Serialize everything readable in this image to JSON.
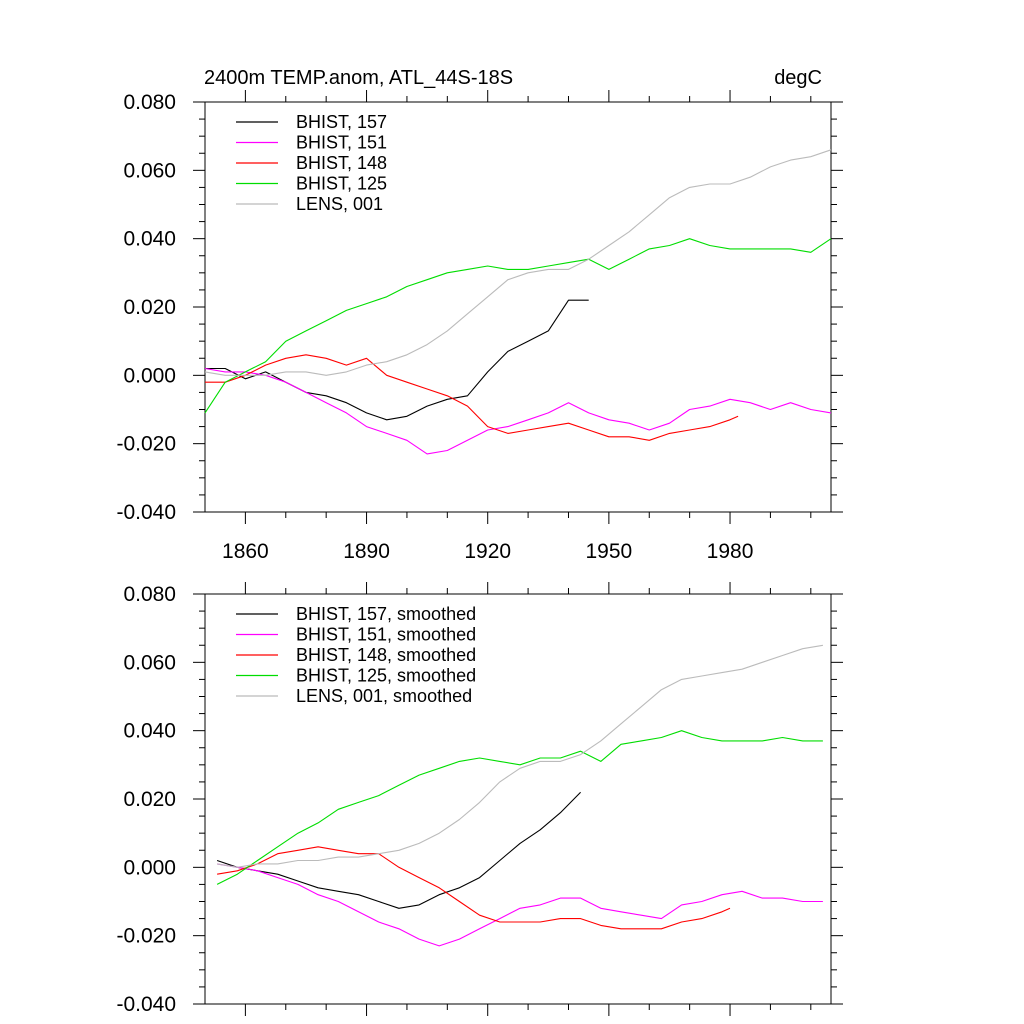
{
  "chart_data": [
    {
      "type": "line",
      "title": "2400m TEMP.anom, ATL_44S-18S",
      "units": "degC",
      "xlim": [
        1850,
        2005
      ],
      "ylim": [
        -0.04,
        0.08
      ],
      "xticks": [
        1860,
        1890,
        1920,
        1950,
        1980
      ],
      "yticks": [
        -0.04,
        -0.02,
        0.0,
        0.02,
        0.04,
        0.06,
        0.08
      ],
      "xtick_labels": [
        "1860",
        "1890",
        "1920",
        "1950",
        "1980"
      ],
      "ytick_labels": [
        "-0.040",
        "-0.020",
        "0.000",
        "0.020",
        "0.040",
        "0.060",
        "0.080"
      ],
      "legend_position": "top-left",
      "series": [
        {
          "name": "BHIST, 157",
          "color": "#000000",
          "x": [
            1850,
            1855,
            1860,
            1865,
            1870,
            1875,
            1880,
            1885,
            1890,
            1895,
            1900,
            1905,
            1910,
            1915,
            1920,
            1925,
            1930,
            1935,
            1940,
            1945
          ],
          "y": [
            0.002,
            0.002,
            -0.001,
            0.001,
            -0.002,
            -0.005,
            -0.006,
            -0.008,
            -0.011,
            -0.013,
            -0.012,
            -0.009,
            -0.007,
            -0.006,
            0.001,
            0.007,
            0.01,
            0.013,
            0.022,
            0.022
          ]
        },
        {
          "name": "BHIST, 151",
          "color": "#ff00ff",
          "x": [
            1850,
            1855,
            1860,
            1865,
            1870,
            1875,
            1880,
            1885,
            1890,
            1895,
            1900,
            1905,
            1910,
            1915,
            1920,
            1925,
            1930,
            1935,
            1940,
            1945,
            1950,
            1955,
            1960,
            1965,
            1970,
            1975,
            1980,
            1985,
            1990,
            1995,
            2000,
            2005
          ],
          "y": [
            0.002,
            0.001,
            0.001,
            0.0,
            -0.002,
            -0.005,
            -0.008,
            -0.011,
            -0.015,
            -0.017,
            -0.019,
            -0.023,
            -0.022,
            -0.019,
            -0.016,
            -0.015,
            -0.013,
            -0.011,
            -0.008,
            -0.011,
            -0.013,
            -0.014,
            -0.016,
            -0.014,
            -0.01,
            -0.009,
            -0.007,
            -0.008,
            -0.01,
            -0.008,
            -0.01,
            -0.011
          ]
        },
        {
          "name": "BHIST, 148",
          "color": "#ff0000",
          "x": [
            1850,
            1855,
            1860,
            1865,
            1870,
            1875,
            1880,
            1885,
            1890,
            1895,
            1900,
            1905,
            1910,
            1915,
            1920,
            1925,
            1930,
            1935,
            1940,
            1945,
            1950,
            1955,
            1960,
            1965,
            1970,
            1975,
            1980,
            1982
          ],
          "y": [
            -0.002,
            -0.002,
            0.0,
            0.003,
            0.005,
            0.006,
            0.005,
            0.003,
            0.005,
            0.0,
            -0.002,
            -0.004,
            -0.006,
            -0.009,
            -0.015,
            -0.017,
            -0.016,
            -0.015,
            -0.014,
            -0.016,
            -0.018,
            -0.018,
            -0.019,
            -0.017,
            -0.016,
            -0.015,
            -0.013,
            -0.012
          ]
        },
        {
          "name": "BHIST, 125",
          "color": "#00dd00",
          "x": [
            1850,
            1855,
            1860,
            1865,
            1870,
            1875,
            1880,
            1885,
            1890,
            1895,
            1900,
            1905,
            1910,
            1915,
            1920,
            1925,
            1930,
            1935,
            1940,
            1945,
            1950,
            1955,
            1960,
            1965,
            1970,
            1975,
            1980,
            1985,
            1990,
            1995,
            2000,
            2005
          ],
          "y": [
            -0.011,
            -0.002,
            0.001,
            0.004,
            0.01,
            0.013,
            0.016,
            0.019,
            0.021,
            0.023,
            0.026,
            0.028,
            0.03,
            0.031,
            0.032,
            0.031,
            0.031,
            0.032,
            0.033,
            0.034,
            0.031,
            0.034,
            0.037,
            0.038,
            0.04,
            0.038,
            0.037,
            0.037,
            0.037,
            0.037,
            0.036,
            0.04
          ]
        },
        {
          "name": "LENS, 001",
          "color": "#bbbbbb",
          "x": [
            1850,
            1855,
            1860,
            1865,
            1870,
            1875,
            1880,
            1885,
            1890,
            1895,
            1900,
            1905,
            1910,
            1915,
            1920,
            1925,
            1930,
            1935,
            1940,
            1945,
            1950,
            1955,
            1960,
            1965,
            1970,
            1975,
            1980,
            1985,
            1990,
            1995,
            2000,
            2005
          ],
          "y": [
            0.001,
            0.0,
            0.0,
            0.0,
            0.001,
            0.001,
            0.0,
            0.001,
            0.003,
            0.004,
            0.006,
            0.009,
            0.013,
            0.018,
            0.023,
            0.028,
            0.03,
            0.031,
            0.031,
            0.034,
            0.038,
            0.042,
            0.047,
            0.052,
            0.055,
            0.056,
            0.056,
            0.058,
            0.061,
            0.063,
            0.064,
            0.066
          ]
        }
      ]
    },
    {
      "type": "line",
      "xlim": [
        1850,
        2005
      ],
      "ylim": [
        -0.04,
        0.08
      ],
      "yticks": [
        -0.04,
        -0.02,
        0.0,
        0.02,
        0.04,
        0.06,
        0.08
      ],
      "ytick_labels": [
        "-0.040",
        "-0.020",
        "0.000",
        "0.020",
        "0.040",
        "0.060",
        "0.080"
      ],
      "legend_position": "top-left",
      "series": [
        {
          "name": "BHIST, 157, smoothed",
          "color": "#000000",
          "x": [
            1853,
            1858,
            1863,
            1868,
            1873,
            1878,
            1883,
            1888,
            1893,
            1898,
            1903,
            1908,
            1913,
            1918,
            1923,
            1928,
            1933,
            1938,
            1943
          ],
          "y": [
            0.002,
            0.0,
            -0.001,
            -0.002,
            -0.004,
            -0.006,
            -0.007,
            -0.008,
            -0.01,
            -0.012,
            -0.011,
            -0.008,
            -0.006,
            -0.003,
            0.002,
            0.007,
            0.011,
            0.016,
            0.022
          ]
        },
        {
          "name": "BHIST, 151, smoothed",
          "color": "#ff00ff",
          "x": [
            1853,
            1858,
            1863,
            1868,
            1873,
            1878,
            1883,
            1888,
            1893,
            1898,
            1903,
            1908,
            1913,
            1918,
            1923,
            1928,
            1933,
            1938,
            1943,
            1948,
            1953,
            1958,
            1963,
            1968,
            1973,
            1978,
            1983,
            1988,
            1993,
            1998,
            2003
          ],
          "y": [
            0.001,
            0.0,
            -0.001,
            -0.003,
            -0.005,
            -0.008,
            -0.01,
            -0.013,
            -0.016,
            -0.018,
            -0.021,
            -0.023,
            -0.021,
            -0.018,
            -0.015,
            -0.012,
            -0.011,
            -0.009,
            -0.009,
            -0.012,
            -0.013,
            -0.014,
            -0.015,
            -0.011,
            -0.01,
            -0.008,
            -0.007,
            -0.009,
            -0.009,
            -0.01,
            -0.01
          ]
        },
        {
          "name": "BHIST, 148, smoothed",
          "color": "#ff0000",
          "x": [
            1853,
            1858,
            1863,
            1868,
            1873,
            1878,
            1883,
            1888,
            1893,
            1898,
            1903,
            1908,
            1913,
            1918,
            1923,
            1928,
            1933,
            1938,
            1943,
            1948,
            1953,
            1958,
            1963,
            1968,
            1973,
            1978,
            1980
          ],
          "y": [
            -0.002,
            -0.001,
            0.001,
            0.004,
            0.005,
            0.006,
            0.005,
            0.004,
            0.004,
            0.0,
            -0.003,
            -0.006,
            -0.01,
            -0.014,
            -0.016,
            -0.016,
            -0.016,
            -0.015,
            -0.015,
            -0.017,
            -0.018,
            -0.018,
            -0.018,
            -0.016,
            -0.015,
            -0.013,
            -0.012
          ]
        },
        {
          "name": "BHIST, 125, smoothed",
          "color": "#00dd00",
          "x": [
            1853,
            1858,
            1863,
            1868,
            1873,
            1878,
            1883,
            1888,
            1893,
            1898,
            1903,
            1908,
            1913,
            1918,
            1923,
            1928,
            1933,
            1938,
            1943,
            1948,
            1953,
            1958,
            1963,
            1968,
            1973,
            1978,
            1983,
            1988,
            1993,
            1998,
            2003
          ],
          "y": [
            -0.005,
            -0.002,
            0.002,
            0.006,
            0.01,
            0.013,
            0.017,
            0.019,
            0.021,
            0.024,
            0.027,
            0.029,
            0.031,
            0.032,
            0.031,
            0.03,
            0.032,
            0.032,
            0.034,
            0.031,
            0.036,
            0.037,
            0.038,
            0.04,
            0.038,
            0.037,
            0.037,
            0.037,
            0.038,
            0.037,
            0.037
          ]
        },
        {
          "name": "LENS, 001, smoothed",
          "color": "#bbbbbb",
          "x": [
            1853,
            1858,
            1863,
            1868,
            1873,
            1878,
            1883,
            1888,
            1893,
            1898,
            1903,
            1908,
            1913,
            1918,
            1923,
            1928,
            1933,
            1938,
            1943,
            1948,
            1953,
            1958,
            1963,
            1968,
            1973,
            1978,
            1983,
            1988,
            1993,
            1998,
            2003
          ],
          "y": [
            0.001,
            0.0,
            0.001,
            0.001,
            0.002,
            0.002,
            0.003,
            0.003,
            0.004,
            0.005,
            0.007,
            0.01,
            0.014,
            0.019,
            0.025,
            0.029,
            0.031,
            0.031,
            0.033,
            0.037,
            0.042,
            0.047,
            0.052,
            0.055,
            0.056,
            0.057,
            0.058,
            0.06,
            0.062,
            0.064,
            0.065
          ]
        }
      ]
    }
  ]
}
